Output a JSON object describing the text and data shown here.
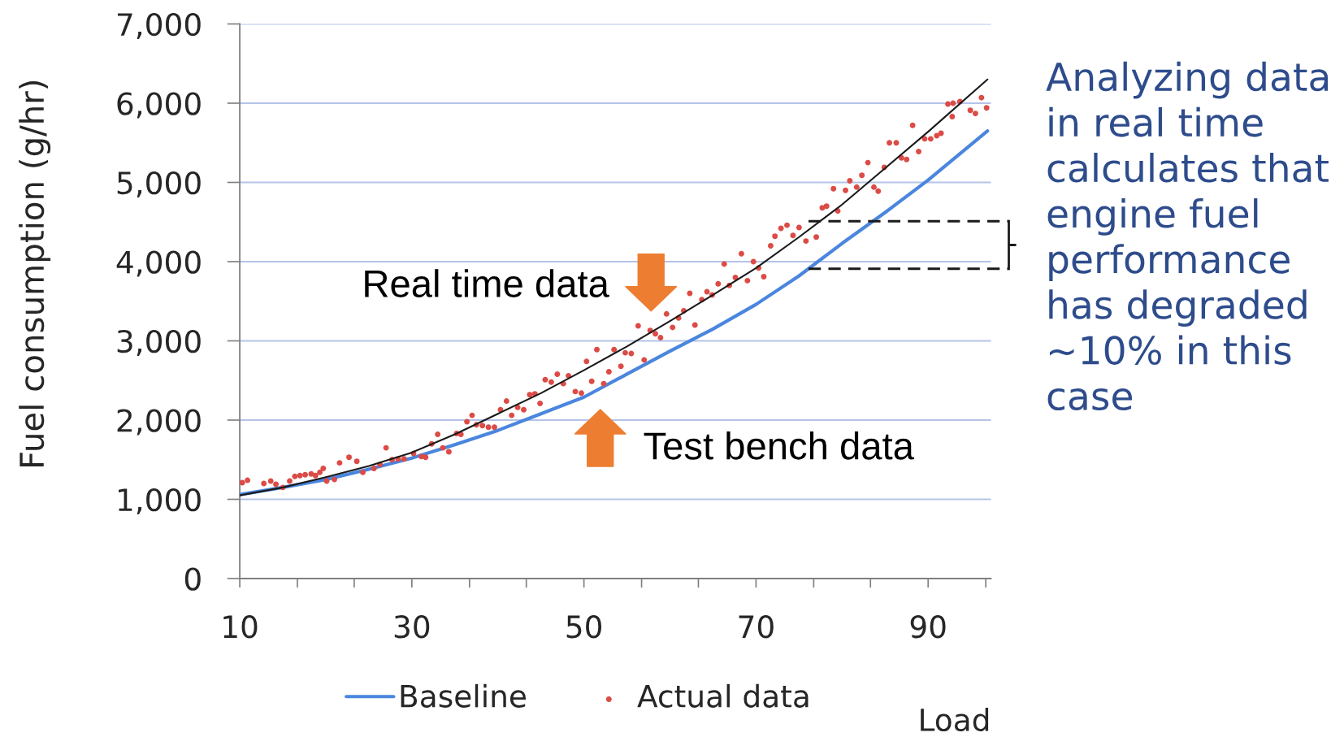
{
  "chart_data": {
    "type": "line",
    "xlabel": "Load",
    "ylabel": "Fuel consumption (g/hr)",
    "xlim": [
      10,
      97.3
    ],
    "xticks": [
      10,
      {
        "value": 16.7,
        "label": null
      },
      {
        "value": 23.3,
        "label": null
      },
      30,
      {
        "value": 36.7,
        "label": null
      },
      {
        "value": 43.3,
        "label": null
      },
      50,
      {
        "value": 56.7,
        "label": null
      },
      {
        "value": 63.3,
        "label": null
      },
      70,
      {
        "value": 76.7,
        "label": null
      },
      {
        "value": 83.3,
        "label": null
      },
      90,
      {
        "value": 96.7,
        "label": null
      }
    ],
    "ylim": [
      0,
      7000
    ],
    "yticks": [
      0,
      {
        "value": 1000,
        "label": "1,000"
      },
      {
        "value": 2000,
        "label": "2,000"
      },
      {
        "value": 3000,
        "label": "3,000"
      },
      {
        "value": 4000,
        "label": "4,000"
      },
      {
        "value": 5000,
        "label": "5,000"
      },
      {
        "value": 6000,
        "label": "6,000"
      },
      {
        "value": 7000,
        "label": "7,000"
      }
    ],
    "grid": "y",
    "legend": "bottom",
    "series": [
      {
        "name": "Baseline",
        "color": "#4a86de",
        "x": [
          10,
          15,
          20,
          25,
          30,
          35,
          40,
          45,
          50,
          55,
          60,
          65,
          70,
          75,
          80,
          85,
          90,
          96.9
        ],
        "values": [
          1060,
          1150,
          1250,
          1380,
          1520,
          1690,
          1870,
          2080,
          2290,
          2580,
          2870,
          3150,
          3460,
          3820,
          4230,
          4620,
          5030,
          5650
        ]
      },
      {
        "name": "Actual data",
        "type": "scatter",
        "color": "#dc4b46",
        "marker": "circle",
        "x": [
          10.3,
          10.9,
          12.8,
          13.6,
          14.2,
          15.0,
          15.8,
          16.4,
          17.0,
          17.6,
          18.3,
          18.8,
          19.3,
          19.7,
          20.1,
          21.0,
          21.6,
          22.7,
          23.6,
          24.3,
          25.6,
          26.3,
          27.0,
          27.7,
          28.4,
          29.1,
          30.2,
          31.1,
          31.6,
          32.3,
          33.0,
          33.6,
          34.3,
          35.2,
          35.7,
          36.4,
          37.0,
          37.5,
          38.2,
          38.9,
          39.6,
          40.3,
          41.0,
          41.6,
          42.3,
          43.0,
          43.7,
          44.3,
          44.9,
          45.5,
          46.2,
          46.9,
          47.6,
          48.2,
          49.0,
          49.7,
          50.3,
          50.9,
          51.5,
          52.3,
          52.9,
          53.5,
          54.3,
          54.8,
          55.5,
          56.3,
          57.0,
          57.7,
          58.3,
          58.9,
          59.6,
          60.3,
          61.0,
          61.6,
          62.3,
          62.9,
          63.7,
          64.3,
          64.9,
          65.6,
          66.3,
          66.9,
          67.6,
          68.3,
          69.0,
          69.7,
          70.3,
          70.9,
          71.7,
          72.2,
          72.9,
          73.6,
          74.3,
          75.0,
          75.8,
          77.0,
          77.7,
          78.2,
          79.0,
          79.5,
          80.4,
          80.9,
          81.7,
          82.3,
          83.0,
          83.7,
          84.2,
          84.9,
          85.5,
          86.3,
          86.9,
          87.5,
          88.2,
          88.9,
          89.6,
          90.3,
          91.0,
          91.5,
          92.3,
          92.8,
          92.9,
          93.7,
          94.9,
          95.5,
          96.2,
          96.8
        ],
        "values": [
          1210,
          1240,
          1200,
          1230,
          1190,
          1150,
          1230,
          1290,
          1300,
          1310,
          1320,
          1300,
          1340,
          1390,
          1230,
          1250,
          1460,
          1530,
          1480,
          1340,
          1390,
          1440,
          1650,
          1500,
          1510,
          1510,
          1580,
          1540,
          1530,
          1700,
          1820,
          1650,
          1600,
          1830,
          1820,
          1980,
          2060,
          1940,
          1930,
          1910,
          1910,
          2130,
          2240,
          2060,
          2160,
          2130,
          2320,
          2330,
          2210,
          2510,
          2480,
          2580,
          2460,
          2560,
          2360,
          2340,
          2740,
          2490,
          2890,
          2460,
          2610,
          2890,
          2680,
          2850,
          2840,
          3190,
          2760,
          3130,
          3090,
          3040,
          3340,
          3170,
          3290,
          3380,
          3600,
          3200,
          3520,
          3620,
          3580,
          3720,
          3970,
          3700,
          3800,
          4100,
          3760,
          4000,
          3920,
          3810,
          4200,
          4320,
          4420,
          4460,
          4330,
          4430,
          4260,
          4310,
          4680,
          4700,
          4920,
          4640,
          4900,
          5020,
          4940,
          5090,
          5250,
          4940,
          4890,
          5190,
          5500,
          5500,
          5310,
          5290,
          5720,
          5390,
          5550,
          5550,
          5590,
          5620,
          5990,
          5830,
          6000,
          6020,
          5910,
          5870,
          6070,
          5940
        ]
      },
      {
        "color": "#1a1a1a",
        "x": [
          10,
          15,
          20,
          25,
          30,
          35,
          40,
          45,
          50,
          55,
          60,
          65,
          70,
          75,
          80,
          85,
          90,
          96.9
        ],
        "values": [
          1050,
          1150,
          1280,
          1420,
          1590,
          1820,
          2080,
          2340,
          2630,
          2930,
          3250,
          3580,
          3920,
          4310,
          4720,
          5180,
          5640,
          6300
        ]
      }
    ],
    "ref_lines": [
      {
        "axis": "y",
        "value": 3910,
        "color": "#1a1a1a",
        "line_style": "dashed"
      },
      {
        "axis": "y",
        "value": 4510,
        "color": "#1a1a1a",
        "line_style": "dashed"
      }
    ],
    "annotations": [
      {
        "text": "Real time data",
        "x": 57.8,
        "y": 3110
      },
      {
        "text": "Test bench data",
        "x": 51.9,
        "y": 2400
      },
      "Analyzing data\nin real time\ncalculates that\nengine fuel\nperformance\nhas degraded\n~10% in this\ncase"
    ]
  }
}
